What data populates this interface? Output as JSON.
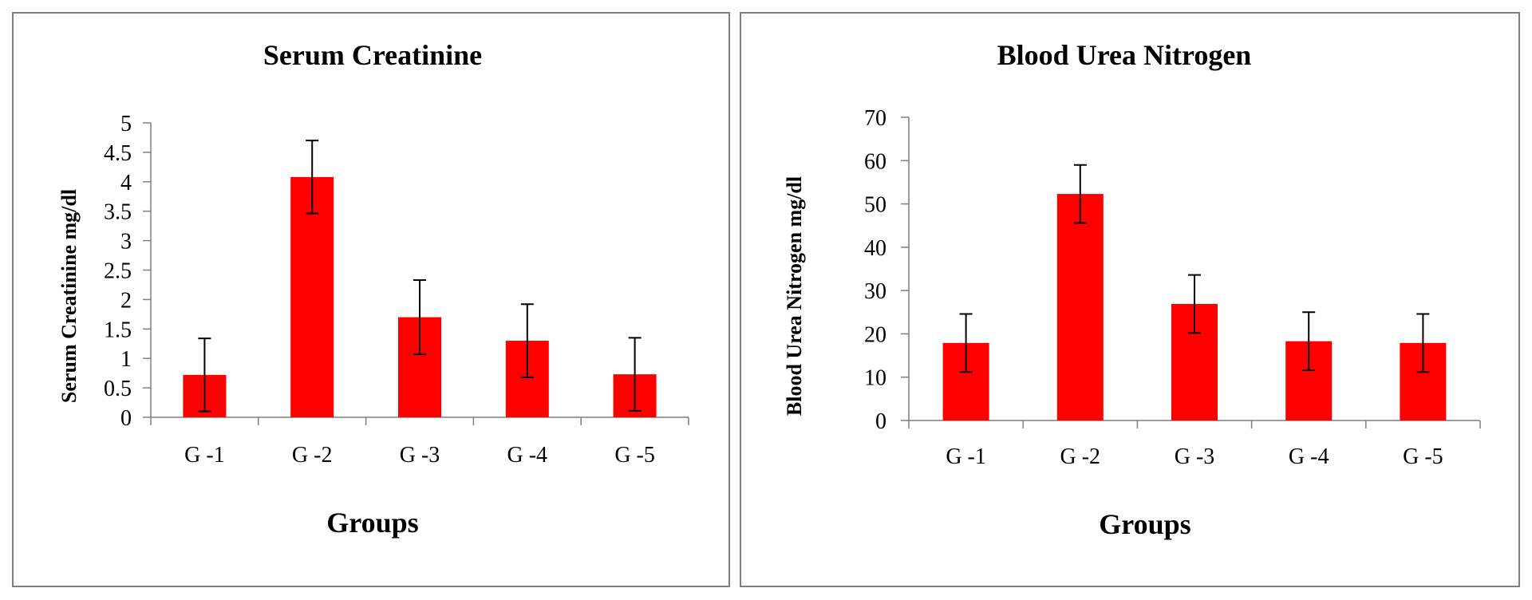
{
  "chart_data": [
    {
      "type": "bar",
      "title": "Serum Creatinine",
      "xlabel": "Groups",
      "ylabel": "Serum  Creatinine mg/dl",
      "categories": [
        "G -1",
        "G -2",
        "G -3",
        "G -4",
        "G -5"
      ],
      "values": [
        0.72,
        4.08,
        1.7,
        1.3,
        0.73
      ],
      "errors": [
        0.62,
        0.62,
        0.63,
        0.62,
        0.62
      ],
      "yticks": [
        "0",
        "0.5",
        "1",
        "1.5",
        "2",
        "2.5",
        "3",
        "3.5",
        "4",
        "4.5",
        "5"
      ],
      "ylim": [
        0,
        5
      ],
      "grid": false,
      "bar_color": "#ff0000"
    },
    {
      "type": "bar",
      "title": "Blood Urea Nitrogen",
      "xlabel": "Groups",
      "ylabel": "Blood Urea Nitrogen mg/dl",
      "categories": [
        "G -1",
        "G -2",
        "G -3",
        "G -4",
        "G -5"
      ],
      "values": [
        17.9,
        52.3,
        26.9,
        18.3,
        17.9
      ],
      "errors": [
        6.7,
        6.7,
        6.7,
        6.7,
        6.7
      ],
      "yticks": [
        "0",
        "10",
        "20",
        "30",
        "40",
        "50",
        "60",
        "70"
      ],
      "ylim": [
        0,
        70
      ],
      "grid": false,
      "bar_color": "#ff0000"
    }
  ]
}
